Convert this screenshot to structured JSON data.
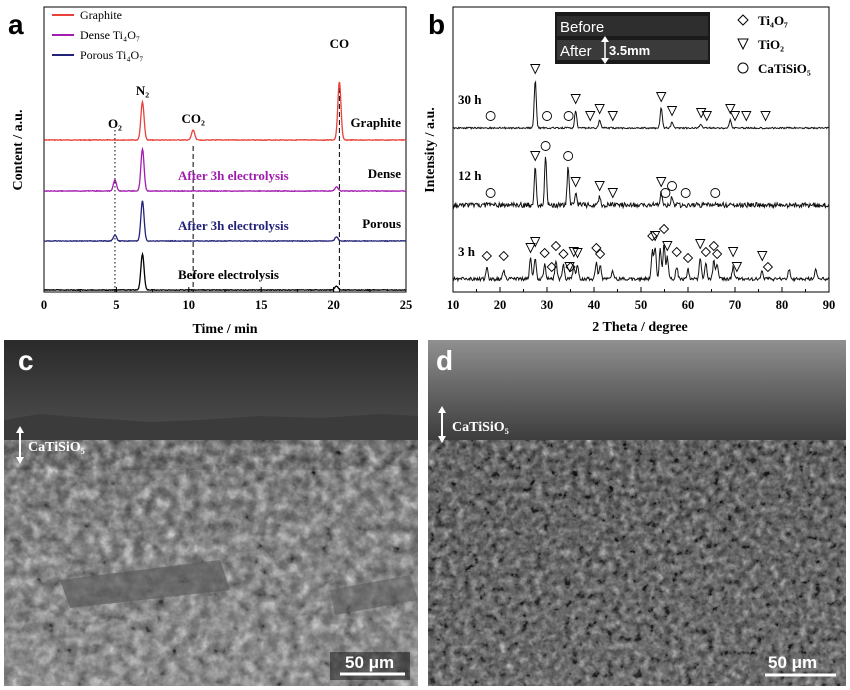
{
  "panels": {
    "a": "a",
    "b": "b",
    "c": "c",
    "d": "d"
  },
  "chart_data": [
    {
      "panel": "a",
      "type": "line",
      "xlabel": "Time / min",
      "ylabel": "Content / a.u.",
      "xlim": [
        0,
        25
      ],
      "xticks": [
        0,
        5,
        10,
        15,
        20,
        25
      ],
      "legend": [
        {
          "name": "Graphite",
          "color": "#e8413a"
        },
        {
          "name": "Dense Ti₄O₇",
          "color": "#a21caf"
        },
        {
          "name": "Porous Ti₄O₇",
          "color": "#23237a"
        }
      ],
      "peak_labels": [
        {
          "text": "O₂",
          "x": 4.9
        },
        {
          "text": "N₂",
          "x": 6.8
        },
        {
          "text": "CO₂",
          "x": 10.3
        },
        {
          "text": "CO",
          "x": 20.4
        }
      ],
      "series": [
        {
          "name": "Graphite",
          "label": "Graphite",
          "color": "#e8413a",
          "peaks": [
            [
              6.8,
              38
            ],
            [
              10.3,
              10
            ],
            [
              20.4,
              58
            ]
          ]
        },
        {
          "name": "Dense",
          "label": "Dense",
          "note": "After 3h electrolysis",
          "note_color": "#a21caf",
          "color": "#a21caf",
          "peaks": [
            [
              4.9,
              11
            ],
            [
              6.8,
              42
            ],
            [
              20.2,
              4
            ]
          ]
        },
        {
          "name": "Porous",
          "label": "Porous",
          "note": "After 3h electrolysis",
          "note_color": "#23237a",
          "color": "#23237a",
          "peaks": [
            [
              4.9,
              6
            ],
            [
              6.8,
              40
            ],
            [
              20.2,
              4
            ]
          ]
        },
        {
          "name": "Before",
          "label": "",
          "note": "Before electrolysis",
          "note_color": "#000000",
          "color": "#000000",
          "peaks": [
            [
              6.8,
              36
            ],
            [
              20.2,
              4
            ]
          ]
        }
      ]
    },
    {
      "panel": "b",
      "type": "line",
      "xlabel": "2 Theta / degree",
      "ylabel": "Intensity / a.u.",
      "xlim": [
        10,
        90
      ],
      "xticks": [
        10,
        20,
        30,
        40,
        50,
        60,
        70,
        80,
        90
      ],
      "legend": [
        {
          "name": "Ti₄O₇",
          "marker": "diamond"
        },
        {
          "name": "TiO₂",
          "marker": "triangle"
        },
        {
          "name": "CaTiSiO₅",
          "marker": "circle"
        }
      ],
      "inset": {
        "before": "Before",
        "after": "After",
        "thickness": "3.5mm"
      },
      "series": [
        {
          "name": "30 h",
          "label": "30 h",
          "peaks": [
            [
              27.5,
              48
            ],
            [
              36.1,
              18
            ],
            [
              41.2,
              8
            ],
            [
              54.3,
              20
            ],
            [
              56.6,
              6
            ],
            [
              62.7,
              4
            ],
            [
              69.0,
              8
            ]
          ],
          "markers": [
            [
              18,
              "circle"
            ],
            [
              27.5,
              "triangle"
            ],
            [
              30.0,
              "circle"
            ],
            [
              34.6,
              "circle"
            ],
            [
              36.1,
              "triangle"
            ],
            [
              39.2,
              "triangle"
            ],
            [
              41.2,
              "triangle"
            ],
            [
              44.0,
              "triangle"
            ],
            [
              54.3,
              "triangle"
            ],
            [
              56.6,
              "triangle"
            ],
            [
              62.8,
              "triangle"
            ],
            [
              64.0,
              "triangle"
            ],
            [
              69.0,
              "triangle"
            ],
            [
              70.0,
              "triangle"
            ],
            [
              72.4,
              "triangle"
            ],
            [
              76.5,
              "triangle"
            ]
          ]
        },
        {
          "name": "12 h",
          "label": "12 h",
          "peaks": [
            [
              27.5,
              38
            ],
            [
              29.7,
              48
            ],
            [
              34.5,
              38
            ],
            [
              36.1,
              12
            ],
            [
              41.2,
              8
            ],
            [
              54.3,
              12
            ],
            [
              56.6,
              8
            ]
          ],
          "markers": [
            [
              18,
              "circle"
            ],
            [
              27.5,
              "triangle"
            ],
            [
              29.7,
              "circle"
            ],
            [
              34.5,
              "circle"
            ],
            [
              36.1,
              "triangle"
            ],
            [
              41.2,
              "triangle"
            ],
            [
              44.0,
              "triangle"
            ],
            [
              54.3,
              "triangle"
            ],
            [
              55.2,
              "circle"
            ],
            [
              56.6,
              "circle"
            ],
            [
              59.5,
              "circle"
            ],
            [
              65.8,
              "circle"
            ]
          ]
        },
        {
          "name": "3 h",
          "label": "3 h",
          "peaks": [
            [
              17.2,
              12
            ],
            [
              20.8,
              8
            ],
            [
              26.5,
              20
            ],
            [
              27.5,
              22
            ],
            [
              29.5,
              15
            ],
            [
              31.9,
              18
            ],
            [
              33.5,
              14
            ],
            [
              35.7,
              12
            ],
            [
              36.5,
              15
            ],
            [
              40.5,
              16
            ],
            [
              41.3,
              14
            ],
            [
              44.0,
              8
            ],
            [
              52.4,
              28
            ],
            [
              53.0,
              32
            ],
            [
              54.1,
              30
            ],
            [
              54.9,
              35
            ],
            [
              55.6,
              22
            ],
            [
              57.6,
              12
            ],
            [
              60.0,
              10
            ],
            [
              62.6,
              20
            ],
            [
              63.8,
              16
            ],
            [
              65.5,
              18
            ],
            [
              66.2,
              14
            ],
            [
              69.6,
              12
            ],
            [
              75.8,
              8
            ],
            [
              81.5,
              10
            ],
            [
              87.2,
              10
            ]
          ],
          "markers": [
            [
              17.2,
              "diamond"
            ],
            [
              20.8,
              "diamond"
            ],
            [
              26.5,
              "triangle"
            ],
            [
              27.5,
              "triangle"
            ],
            [
              29.5,
              "diamond"
            ],
            [
              31.9,
              "diamond"
            ],
            [
              33.5,
              "diamond"
            ],
            [
              35.7,
              "triangle"
            ],
            [
              36.5,
              "triangle"
            ],
            [
              40.5,
              "diamond"
            ],
            [
              41.3,
              "diamond"
            ],
            [
              52.4,
              "diamond"
            ],
            [
              53.0,
              "triangle"
            ],
            [
              54.9,
              "diamond"
            ],
            [
              55.6,
              "triangle"
            ],
            [
              57.6,
              "diamond"
            ],
            [
              60.0,
              "diamond"
            ],
            [
              62.6,
              "triangle"
            ],
            [
              63.8,
              "diamond"
            ],
            [
              65.5,
              "diamond"
            ],
            [
              66.2,
              "diamond"
            ],
            [
              69.6,
              "triangle"
            ],
            [
              70.4,
              "triangle"
            ],
            [
              75.8,
              "triangle"
            ],
            [
              77.0,
              "diamond"
            ],
            [
              35.0,
              "diamond"
            ],
            [
              31.0,
              "diamond"
            ],
            [
              34.8,
              "triangle"
            ]
          ]
        }
      ]
    }
  ],
  "sem_c": {
    "label": "CaTiSiO₅",
    "scale_bar": "50 μm"
  },
  "sem_d": {
    "label": "CaTiSiO₅",
    "scale_bar": "50 μm"
  }
}
